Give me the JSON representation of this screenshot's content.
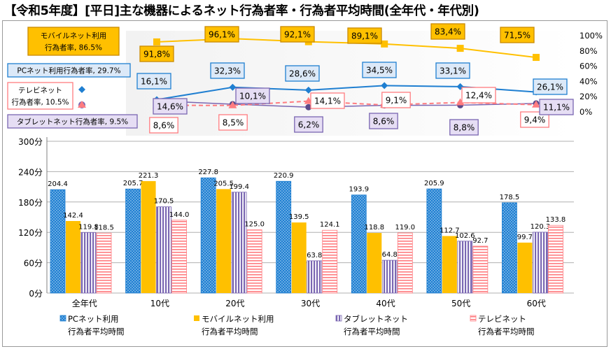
{
  "title": "【令和5年度】[平日]主な機器によるネット行為者率・行為者平均時間(全年代・年代別)",
  "colors": {
    "pc": "#1f7fd1",
    "mobile": "#ffc000",
    "tablet": "#7a67b2",
    "tv": "#ff7c80",
    "pc_label_bg": "#dce9f8",
    "tablet_label_bg": "#e6def4",
    "mobile_label_bg": "#ffc000",
    "mobile_line": "#ffc000"
  },
  "chart_data": {
    "type": "bar",
    "categories": [
      "全年代",
      "10代",
      "20代",
      "30代",
      "40代",
      "50代",
      "60代"
    ],
    "ylabel_ticks": [
      "0分",
      "60分",
      "120分",
      "180分",
      "240分",
      "300分"
    ],
    "ylim": [
      0,
      300
    ],
    "series": [
      {
        "name": "PCネット利用\n行為者平均時間",
        "key": "pc",
        "values": [
          204.4,
          205.7,
          227.8,
          220.9,
          193.9,
          205.9,
          178.5
        ]
      },
      {
        "name": "モバイルネット利用\n行為者平均時間",
        "key": "mobile",
        "values": [
          142.4,
          221.3,
          205.5,
          139.5,
          118.8,
          112.7,
          99.7
        ]
      },
      {
        "name": "タブレットネット\n行為者平均時間",
        "key": "tablet",
        "values": [
          119.8,
          170.5,
          199.4,
          63.8,
          64.8,
          102.6,
          120.3
        ]
      },
      {
        "name": "テレビネット\n行為者平均時間",
        "key": "tv",
        "values": [
          118.5,
          144.0,
          125.0,
          124.1,
          119.0,
          92.7,
          133.8
        ]
      }
    ],
    "legend": [
      {
        "key": "pc",
        "line1": "PCネット利用",
        "line2": "行為者平均時間"
      },
      {
        "key": "mobile",
        "line1": "モバイルネット利用",
        "line2": "行為者平均時間"
      },
      {
        "key": "tablet",
        "line1": "タブレットネット",
        "line2": "行為者平均時間"
      },
      {
        "key": "tv",
        "line1": "テレビネット",
        "line2": "行為者平均時間"
      }
    ],
    "rate_axis": {
      "ticks": [
        "0%",
        "20%",
        "40%",
        "60%",
        "80%",
        "100%"
      ],
      "ylim": [
        0,
        100
      ]
    },
    "rate_series": [
      {
        "key": "mobile",
        "name": "モバイルネット利用行為者率",
        "overall_label": [
          "モバイルネット利用",
          "行為者率, 86.5%"
        ],
        "values": [
          91.8,
          96.1,
          92.1,
          89.1,
          83.4,
          71.5
        ],
        "labels": [
          "91,8%",
          "96,1%",
          "92,1%",
          "89,1%",
          "83,4%",
          "71,5%"
        ]
      },
      {
        "key": "pc",
        "name": "PCネット利用行為者率",
        "overall_label": [
          "PCネット利用行為者率, 29.7%"
        ],
        "values": [
          16.1,
          32.3,
          28.6,
          34.5,
          33.1,
          26.1
        ],
        "labels": [
          "16,1%",
          "32,3%",
          "28,6%",
          "34,5%",
          "33,1%",
          "26,1%"
        ]
      },
      {
        "key": "tv",
        "name": "テレビネット行為者率",
        "overall_label": [
          "テレビネット",
          "行為者率, 10.5%"
        ],
        "values": [
          8.6,
          8.5,
          14.1,
          9.1,
          12.4,
          9.4
        ],
        "labels": [
          "8,6%",
          "8,5%",
          "14,1%",
          "9,1%",
          "12,4%",
          "9,4%"
        ]
      },
      {
        "key": "tablet",
        "name": "タブレットネット行為者率",
        "overall_label": [
          "タブレットネット行為者率, 9.5%"
        ],
        "values": [
          14.6,
          10.1,
          6.2,
          8.6,
          8.8,
          11.1
        ],
        "labels": [
          "14,6%",
          "10,1%",
          "6,2%",
          "8,6%",
          "8,8%",
          "11,1%"
        ]
      }
    ]
  }
}
